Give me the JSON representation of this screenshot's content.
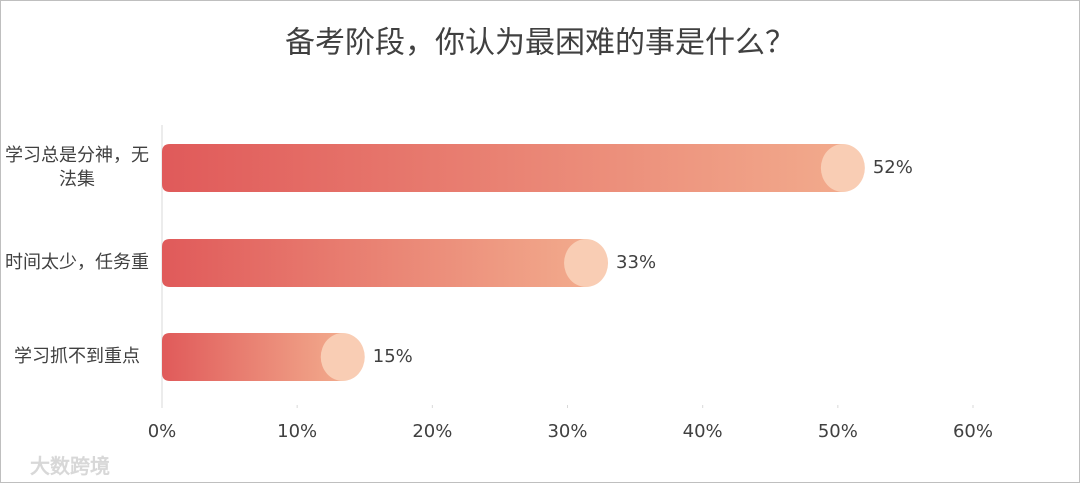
{
  "chart_data": {
    "type": "bar",
    "orientation": "horizontal",
    "title": "备考阶段，你认为最困难的事是什么？",
    "categories": [
      "学习总是分神，无法集",
      "时间太少，任务重",
      "学习抓不到重点"
    ],
    "values": [
      52,
      33,
      15
    ],
    "value_labels": [
      "52%",
      "33%",
      "15%"
    ],
    "color": "#e56a65",
    "xlim": [
      0,
      60
    ],
    "xticks": [
      {
        "value": 0,
        "label": "0%"
      },
      {
        "value": 10,
        "label": "10%"
      },
      {
        "value": 20,
        "label": "20%"
      },
      {
        "value": 30,
        "label": "30%"
      },
      {
        "value": 40,
        "label": "40%"
      },
      {
        "value": 50,
        "label": "50%"
      },
      {
        "value": 60,
        "label": "60%"
      }
    ],
    "grid": false,
    "watermark": "大数跨境"
  }
}
